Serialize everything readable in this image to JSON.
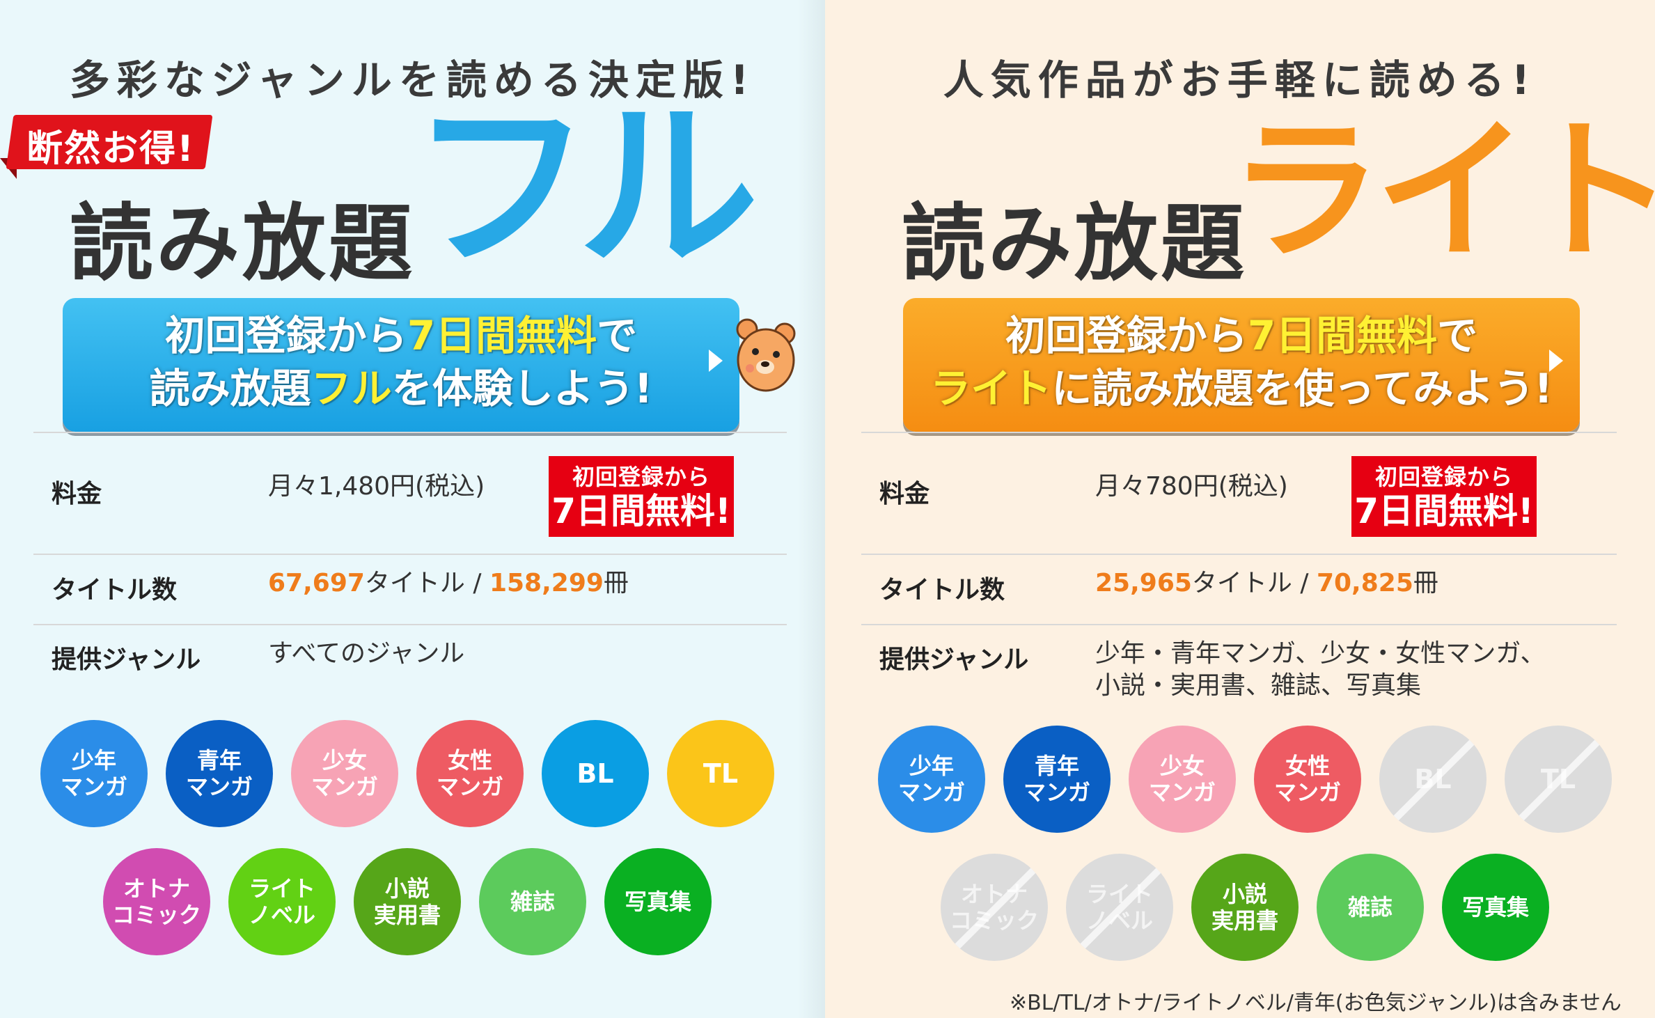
{
  "full": {
    "tagline": "多彩なジャンルを読める決定版!",
    "ribbon": "断然お得!",
    "hero_prefix": "読み放題",
    "hero_name": "フル",
    "cta": {
      "l1_pre": "初回登録から",
      "l1_hl": "7日間無料",
      "l1_post": "で",
      "l2_pre": "読み放題",
      "l2_hl": "フル",
      "l2_post": "を体験しよう!"
    },
    "price_label": "料金",
    "price_value": "月々1,480円(税込)",
    "badge_top": "初回登録から",
    "badge_bottom": "7日間無料!",
    "titles_label": "タイトル数",
    "titles_count": "67,697",
    "titles_unit": "タイトル / ",
    "volumes_count": "158,299",
    "volumes_unit": "冊",
    "genre_label": "提供ジャンル",
    "genre_value": "すべてのジャンル",
    "genres": [
      {
        "label": "少年\nマンガ",
        "color": "#2b8de8",
        "enabled": true
      },
      {
        "label": "青年\nマンガ",
        "color": "#0a5fc4",
        "enabled": true
      },
      {
        "label": "少女\nマンガ",
        "color": "#f7a3b5",
        "enabled": true
      },
      {
        "label": "女性\nマンガ",
        "color": "#ee5b63",
        "enabled": true
      },
      {
        "label": "BL",
        "color": "#0a9ee3",
        "enabled": true
      },
      {
        "label": "TL",
        "color": "#fbc519",
        "enabled": true
      },
      {
        "label": "オトナ\nコミック",
        "color": "#d14cb1",
        "enabled": true
      },
      {
        "label": "ライト\nノベル",
        "color": "#62d114",
        "enabled": true
      },
      {
        "label": "小説\n実用書",
        "color": "#56a619",
        "enabled": true
      },
      {
        "label": "雑誌",
        "color": "#5ccb5c",
        "enabled": true
      },
      {
        "label": "写真集",
        "color": "#0ab022",
        "enabled": true
      }
    ]
  },
  "lite": {
    "tagline": "人気作品がお手軽に読める!",
    "hero_prefix": "読み放題",
    "hero_name": "ライト",
    "cta": {
      "l1_pre": "初回登録から",
      "l1_hl": "7日間無料",
      "l1_post": "で",
      "l2_hl": "ライト",
      "l2_post": "に読み放題を使ってみよう!"
    },
    "price_label": "料金",
    "price_value": "月々780円(税込)",
    "badge_top": "初回登録から",
    "badge_bottom": "7日間無料!",
    "titles_label": "タイトル数",
    "titles_count": "25,965",
    "titles_unit": "タイトル / ",
    "volumes_count": "70,825",
    "volumes_unit": "冊",
    "genre_label": "提供ジャンル",
    "genre_value_l1": "少年・青年マンガ、少女・女性マンガ、",
    "genre_value_l2": "小説・実用書、雑誌、写真集",
    "genres": [
      {
        "label": "少年\nマンガ",
        "color": "#2b8de8",
        "enabled": true
      },
      {
        "label": "青年\nマンガ",
        "color": "#0a5fc4",
        "enabled": true
      },
      {
        "label": "少女\nマンガ",
        "color": "#f7a3b5",
        "enabled": true
      },
      {
        "label": "女性\nマンガ",
        "color": "#ee5b63",
        "enabled": true
      },
      {
        "label": "BL",
        "color": "#dcdcdc",
        "enabled": false
      },
      {
        "label": "TL",
        "color": "#dcdcdc",
        "enabled": false
      },
      {
        "label": "オトナ\nコミック",
        "color": "#dcdcdc",
        "enabled": false
      },
      {
        "label": "ライト\nノベル",
        "color": "#dcdcdc",
        "enabled": false
      },
      {
        "label": "小説\n実用書",
        "color": "#56a619",
        "enabled": true
      },
      {
        "label": "雑誌",
        "color": "#5ccb5c",
        "enabled": true
      },
      {
        "label": "写真集",
        "color": "#0ab022",
        "enabled": true
      }
    ],
    "footnote": "※BL/TL/オトナ/ライトノベル/青年(お色気ジャンル)は含みません"
  }
}
